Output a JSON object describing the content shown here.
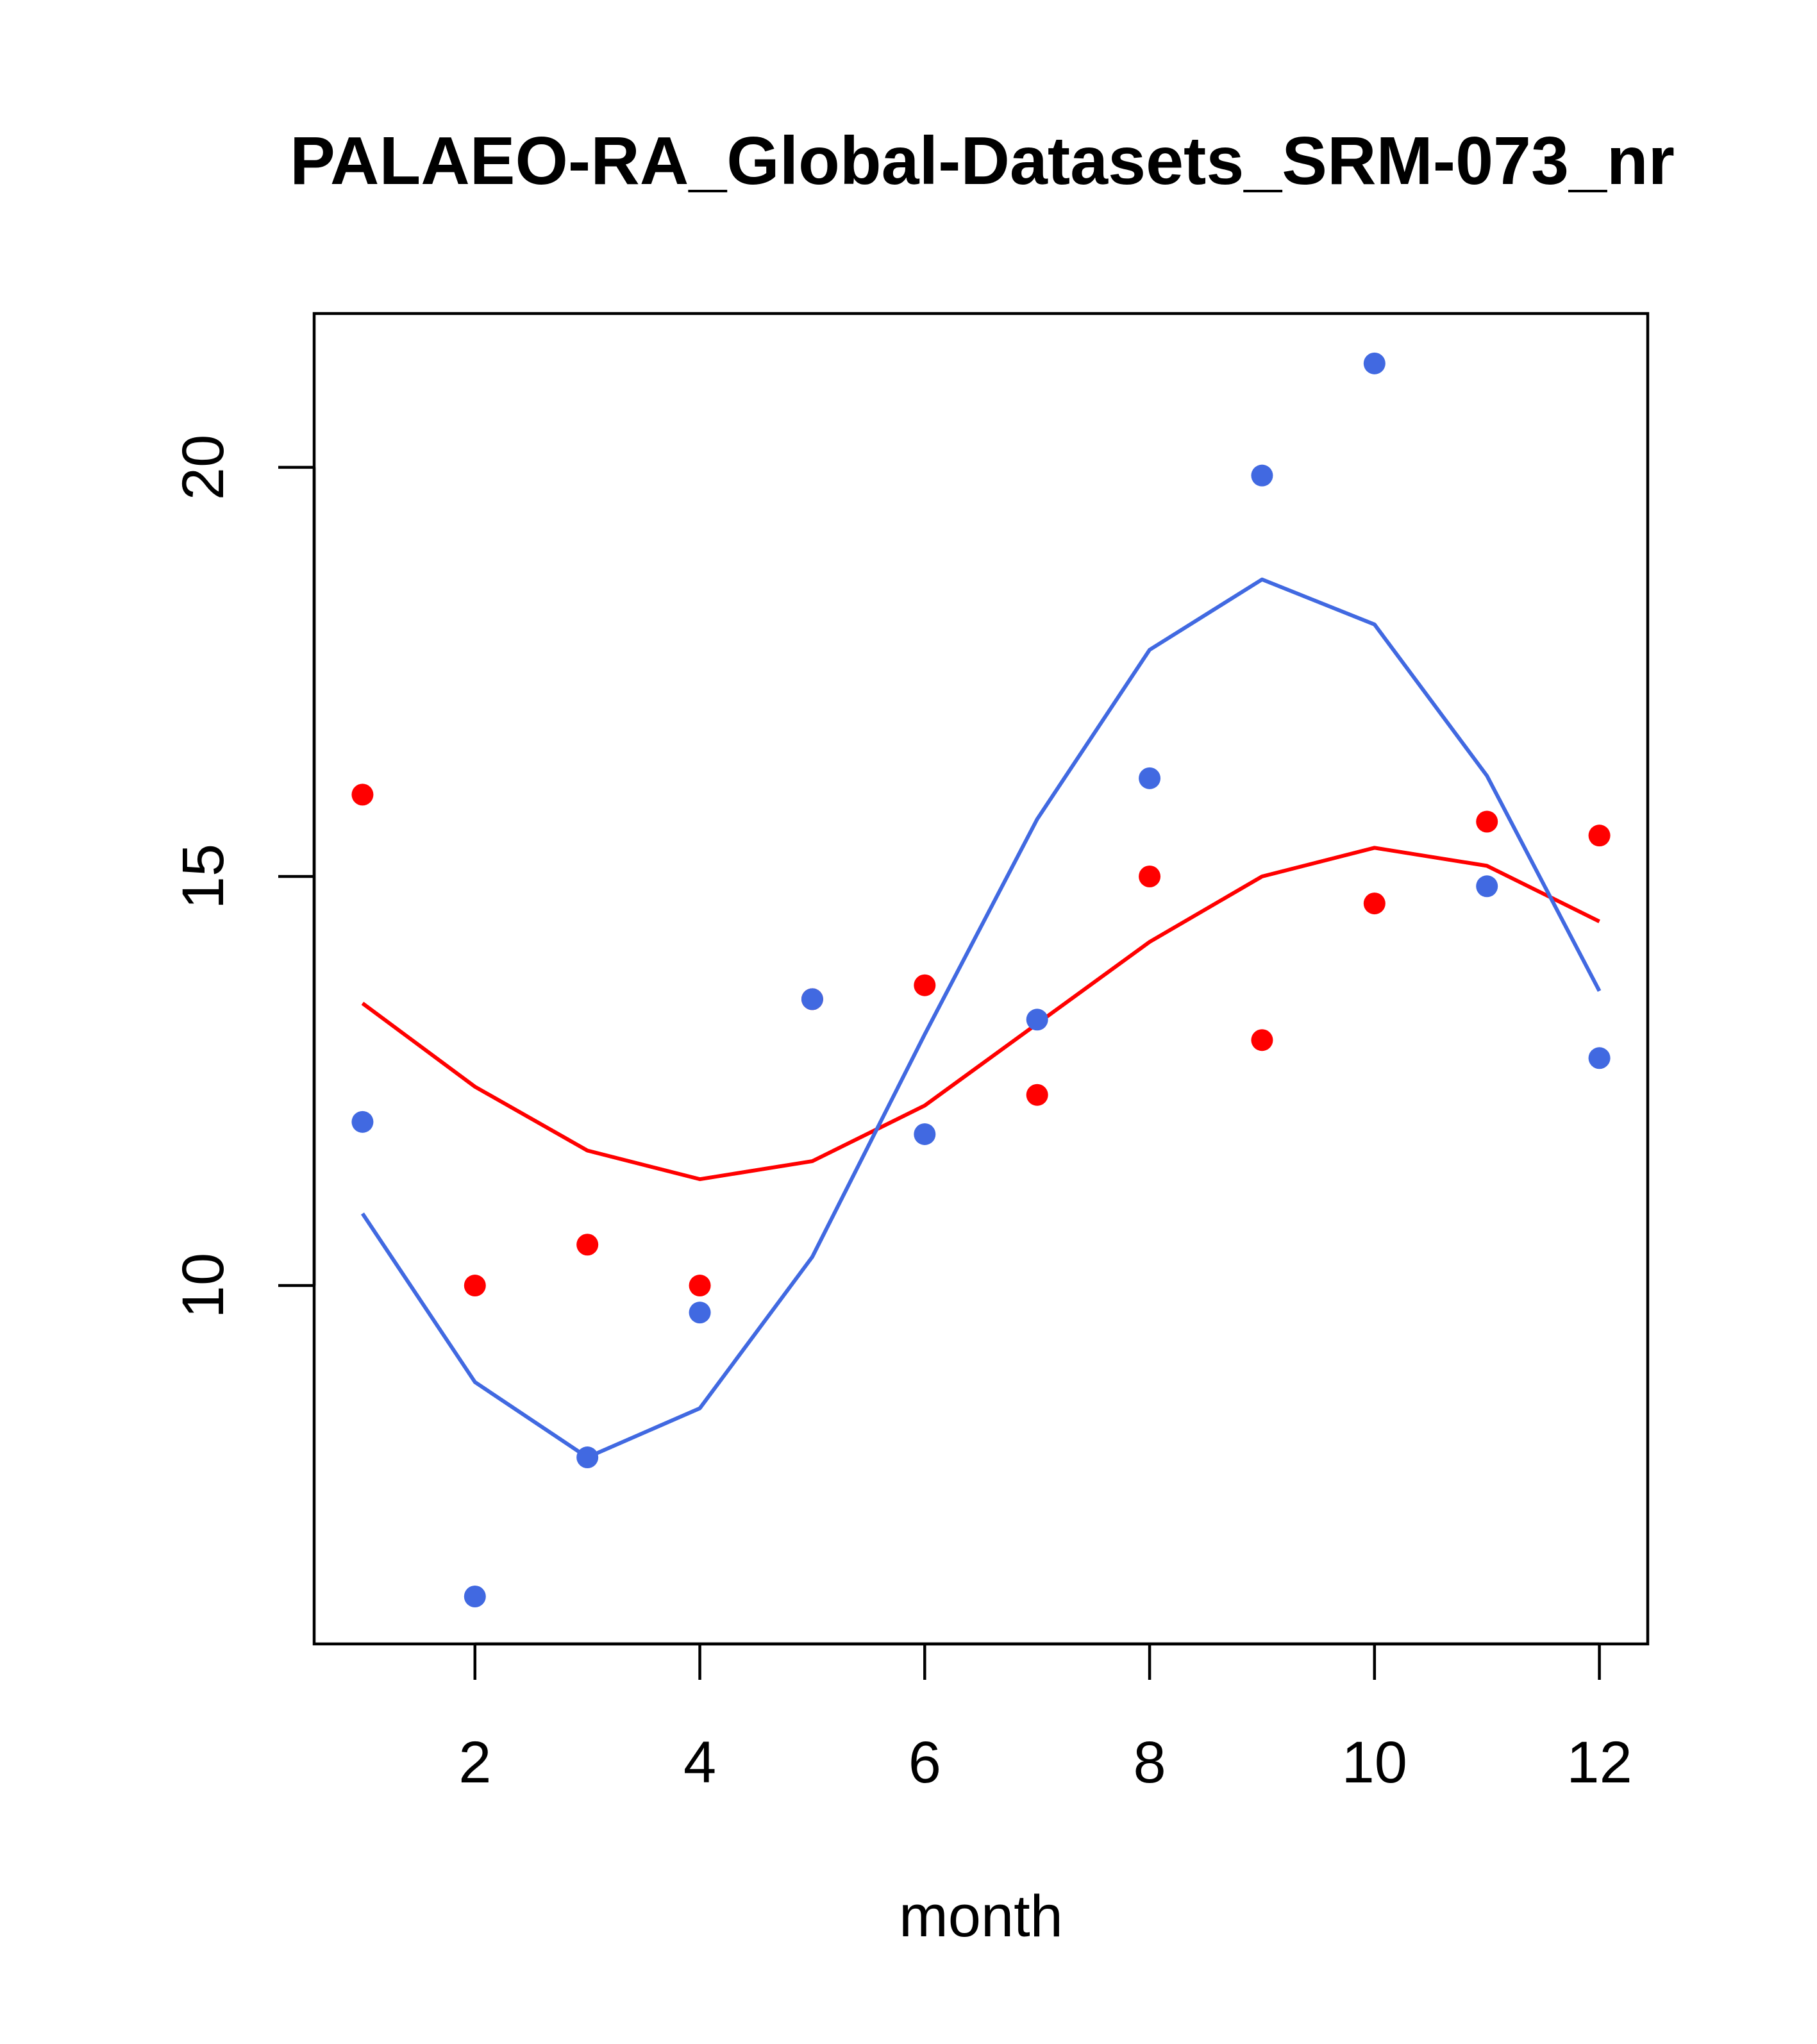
{
  "chart_data": {
    "type": "scatter",
    "title": "PALAEO-RA_Global-Datasets_SRM-073_nr",
    "xlabel": "month",
    "ylabel": "",
    "xlim": [
      0.57,
      12.43
    ],
    "ylim": [
      5.62,
      21.88
    ],
    "x_ticks": [
      2,
      4,
      6,
      8,
      10,
      12
    ],
    "x_tick_labels": [
      "2",
      "4",
      "6",
      "8",
      "10",
      "12"
    ],
    "y_ticks": [
      10,
      15,
      20
    ],
    "y_tick_labels": [
      "10",
      "15",
      "20"
    ],
    "grid": false,
    "series": [
      {
        "name": "points-red",
        "kind": "points",
        "color": "#ff0000",
        "x": [
          1,
          2,
          3,
          4,
          5,
          6,
          7,
          8,
          9,
          10,
          11,
          12
        ],
        "y": [
          16.0,
          10.0,
          10.5,
          10.0,
          13.5,
          13.67,
          12.33,
          15.0,
          13.0,
          14.67,
          15.67,
          15.5
        ]
      },
      {
        "name": "points-blue",
        "kind": "points",
        "color": "#4169e1",
        "x": [
          1,
          2,
          3,
          4,
          5,
          6,
          7,
          8,
          9,
          10,
          11,
          12
        ],
        "y": [
          12.0,
          6.2,
          7.9,
          9.67,
          13.5,
          11.85,
          13.25,
          16.2,
          19.9,
          21.27,
          14.88,
          12.78
        ]
      },
      {
        "name": "fit-red",
        "kind": "line",
        "color": "#ff0000",
        "x": [
          1,
          2,
          3,
          4,
          5,
          6,
          7,
          8,
          9,
          10,
          11,
          12
        ],
        "y": [
          13.45,
          12.43,
          11.65,
          11.3,
          11.52,
          12.2,
          13.2,
          14.2,
          15.0,
          15.35,
          15.13,
          14.45
        ]
      },
      {
        "name": "fit-blue",
        "kind": "line",
        "color": "#4169e1",
        "x": [
          1,
          2,
          3,
          4,
          5,
          6,
          7,
          8,
          9,
          10,
          11,
          12
        ],
        "y": [
          10.88,
          8.82,
          7.9,
          8.5,
          10.35,
          13.07,
          15.7,
          17.77,
          18.63,
          18.08,
          16.23,
          13.6
        ]
      }
    ]
  }
}
